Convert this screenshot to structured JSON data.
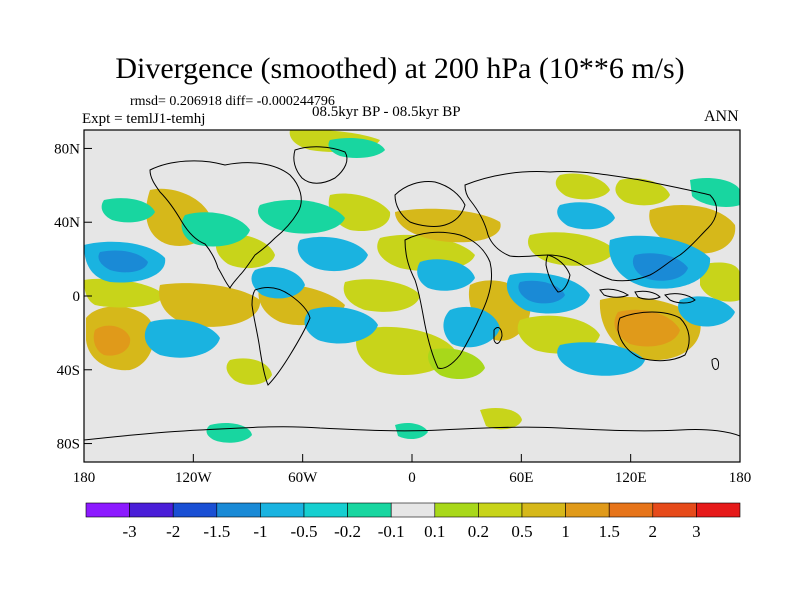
{
  "title": "Divergence (smoothed) at 200 hPa (10**6 m/s)",
  "stats": "rmsd= 0.206918 diff= -0.000244796",
  "experiment": "Expt = temlJ1-temhj",
  "period": "08.5kyr BP - 08.5kyr BP",
  "season": "ANN",
  "map": {
    "background_color": "#e6e6e6",
    "lat_ticks": [
      "80N",
      "40N",
      "0",
      "40S",
      "80S"
    ],
    "lon_ticks": [
      "180",
      "120W",
      "60W",
      "0",
      "60E",
      "120E",
      "180"
    ]
  },
  "colorbar": {
    "colors": [
      "#8c1aff",
      "#4a1ed8",
      "#1a4fd4",
      "#1a8ad6",
      "#1ab3e0",
      "#16cfd0",
      "#18d6a0",
      "#e6e6e6",
      "#a8d81a",
      "#c8d41a",
      "#d6b81a",
      "#e09a1a",
      "#e6741a",
      "#e64a1a",
      "#e61a1a"
    ],
    "labels": [
      "-3",
      "-2",
      "-1.5",
      "-1",
      "-0.5",
      "-0.2",
      "-0.1",
      "0.1",
      "0.2",
      "0.5",
      "1",
      "1.5",
      "2",
      "3"
    ]
  }
}
